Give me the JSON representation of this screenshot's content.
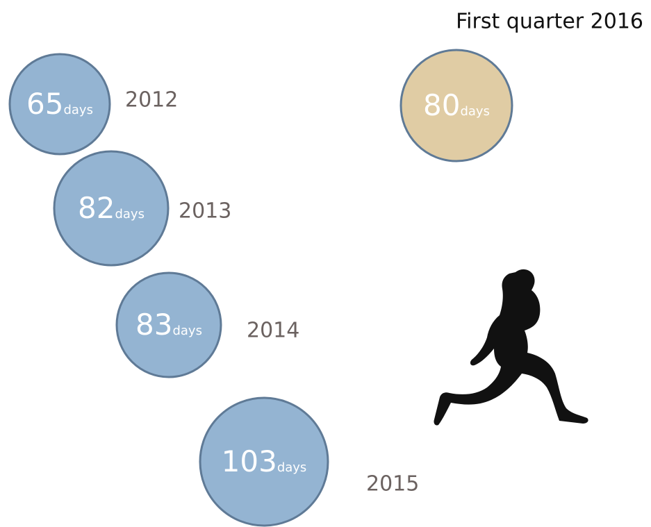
{
  "items": [
    {
      "value": 65,
      "unit": "days",
      "year": "2012"
    },
    {
      "value": 82,
      "unit": "days",
      "year": "2013"
    },
    {
      "value": 83,
      "unit": "days",
      "year": "2014"
    },
    {
      "value": 103,
      "unit": "days",
      "year": "2015"
    }
  ],
  "highlight": {
    "title": "First quarter 2016",
    "value": 80,
    "unit": "days"
  }
}
